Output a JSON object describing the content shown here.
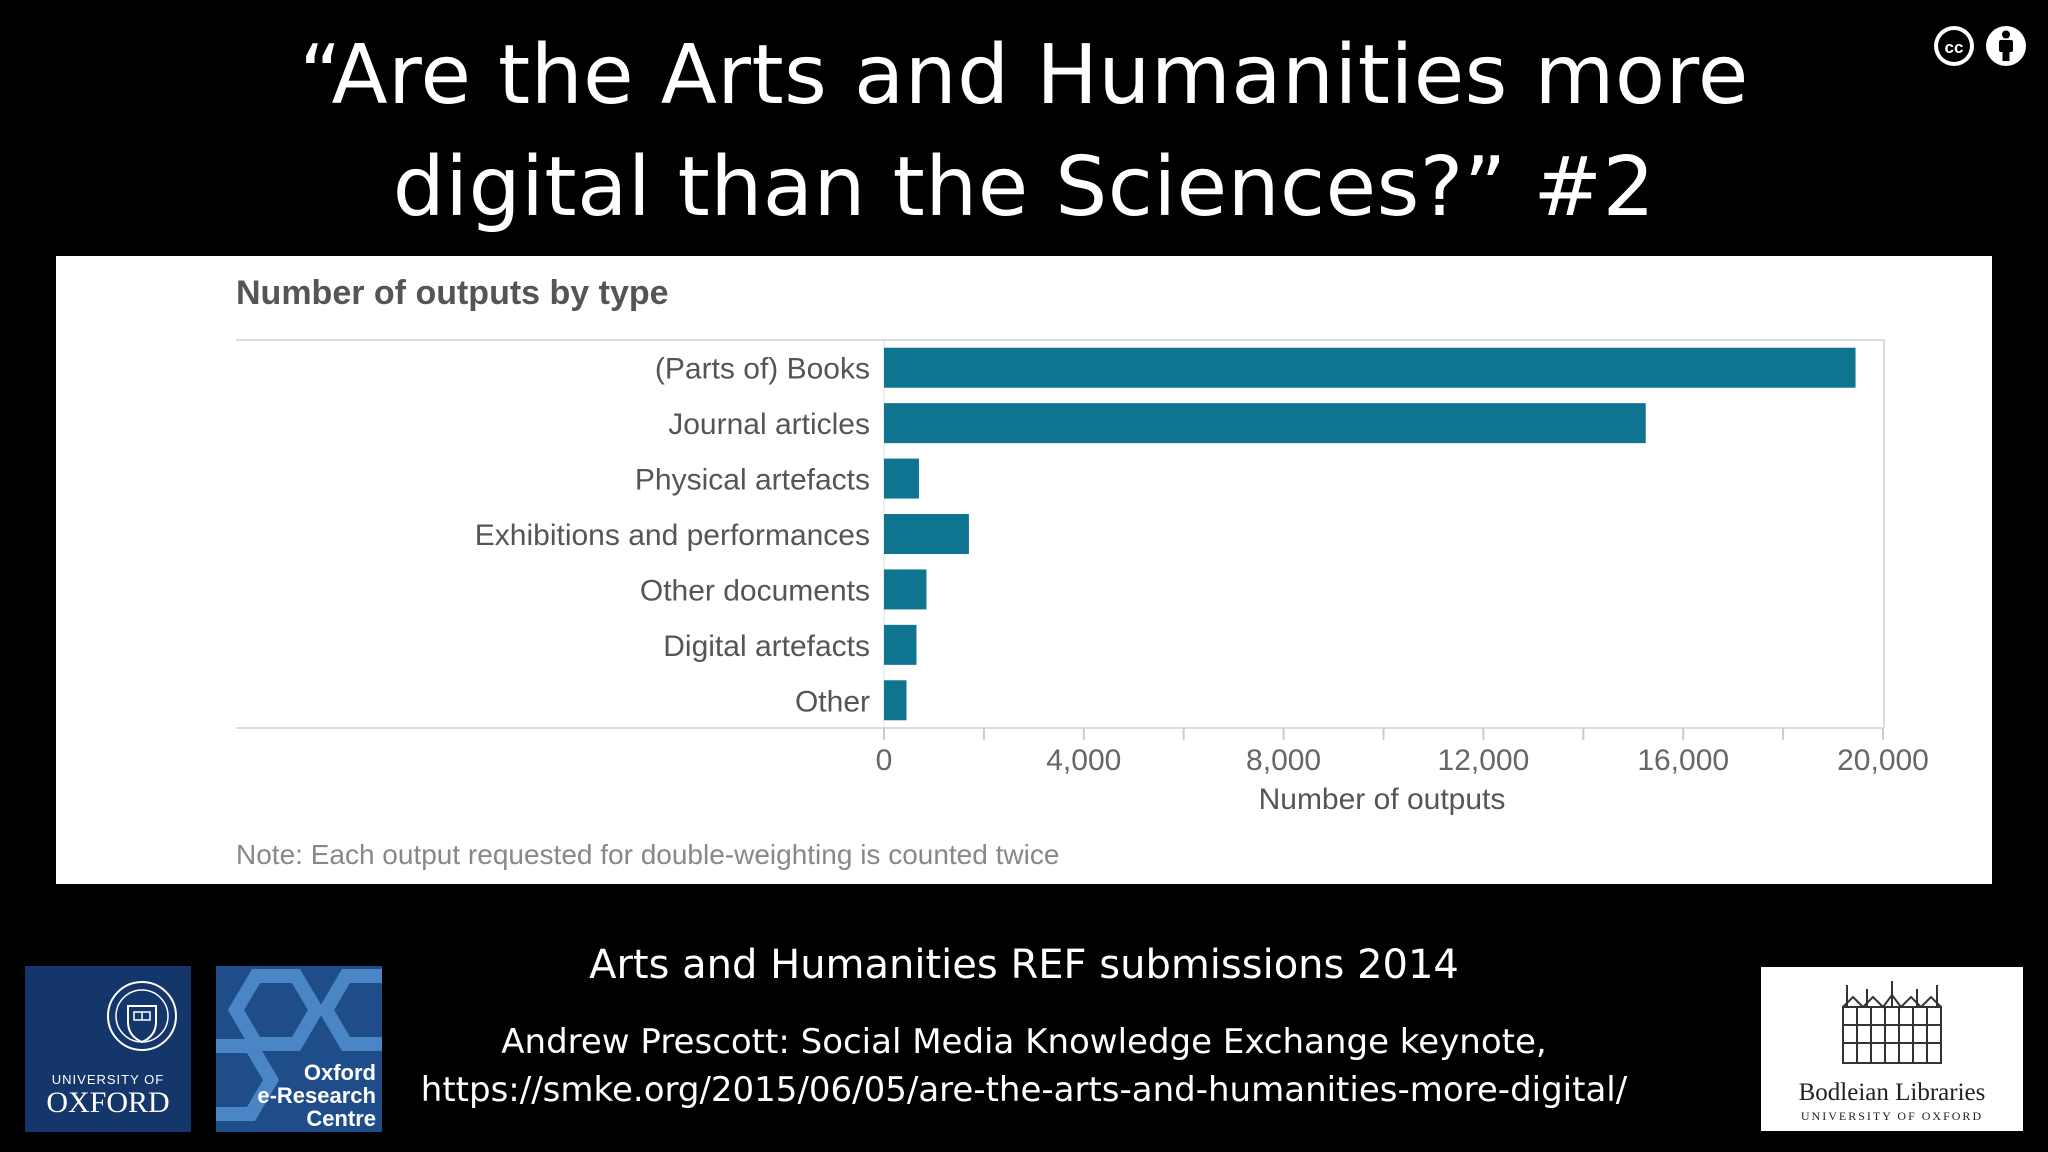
{
  "slide": {
    "title_line1": "“Are the Arts and Humanities more",
    "title_line2": "digital than the Sciences?” #2",
    "caption_main": "Arts and Humanities REF submissions 2014",
    "caption_source_line1": "Andrew Prescott: Social Media Knowledge Exchange keynote,",
    "caption_source_line2": "https://smke.org/2015/06/05/are-the-arts-and-humanities-more-digital/",
    "icons": [
      "cc-icon",
      "attribution-icon"
    ]
  },
  "logos": {
    "oxford_line1": "UNIVERSITY OF",
    "oxford_line2": "OXFORD",
    "oerc_line1": "Oxford",
    "oerc_line2": "e-Research",
    "oerc_line3": "Centre",
    "bodleian_line1": "Bodleian Libraries",
    "bodleian_line2": "UNIVERSITY OF OXFORD"
  },
  "chart_data": {
    "type": "bar",
    "orientation": "horizontal",
    "title": "Number of outputs by type",
    "xlabel": "Number of outputs",
    "ylabel": "",
    "note": "Note: Each output requested for double-weighting is counted twice",
    "categories": [
      "(Parts of) Books",
      "Journal articles",
      "Physical artefacts",
      "Exhibitions and performances",
      "Other documents",
      "Digital artefacts",
      "Other"
    ],
    "values": [
      19450,
      15250,
      700,
      1700,
      850,
      650,
      450
    ],
    "xlim": [
      0,
      20000
    ],
    "xticks": [
      0,
      4000,
      8000,
      12000,
      16000,
      20000
    ],
    "xtick_labels": [
      "0",
      "4,000",
      "8,000",
      "12,000",
      "16,000",
      "20,000"
    ],
    "bar_color": "#0e7490",
    "grid": false
  }
}
